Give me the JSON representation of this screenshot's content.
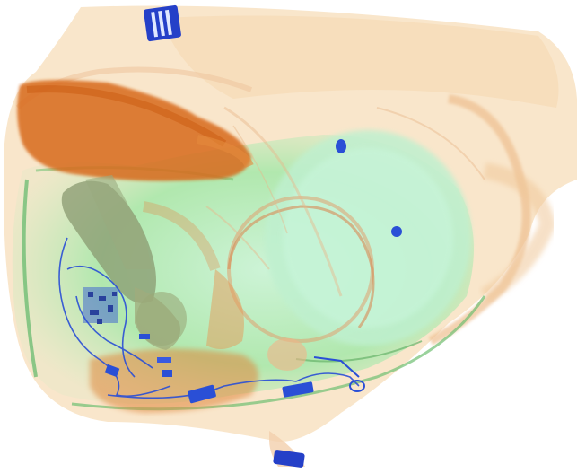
{
  "image": {
    "kind": "x-ray baggage scan",
    "palette": {
      "background": "#ffffff",
      "organic_light": "#f7dcb4",
      "organic_mid": "#f0b888",
      "organic_dense": "#d86a1a",
      "mixed_green": "#9ee0a0",
      "mixed_green_dark": "#5fb86a",
      "inorganic_blue": "#2a4fd6",
      "inorganic_blue_dark": "#1a2f9a",
      "grey_object": "#8a9a70"
    }
  }
}
